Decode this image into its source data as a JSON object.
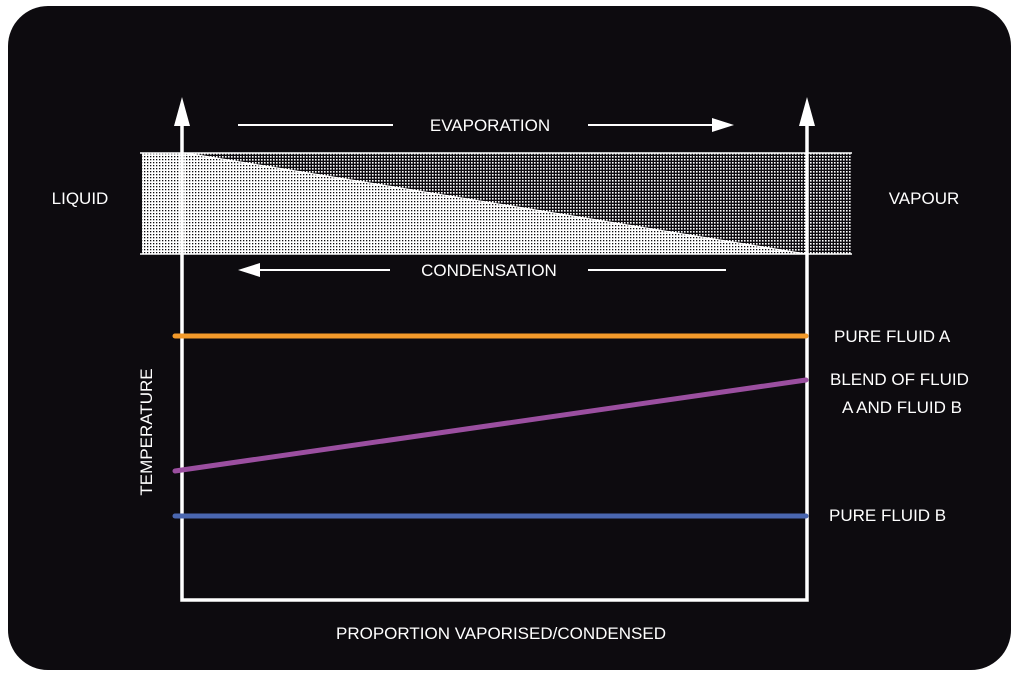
{
  "labels": {
    "evaporation": "EVAPORATION",
    "condensation": "CONDENSATION",
    "liquid": "LIQUID",
    "vapour": "VAPOUR",
    "temperature": "TEMPERATURE",
    "x_axis": "PROPORTION VAPORISED/CONDENSED"
  },
  "lines": {
    "fluid_a": {
      "label": "PURE FLUID A",
      "color": "#f39a2a"
    },
    "blend": {
      "label_line1": "BLEND OF FLUID",
      "label_line2": "A AND FLUID B",
      "color": "#9b4fa0"
    },
    "fluid_b": {
      "label": "PURE FLUID B",
      "color": "#4a67b0"
    }
  },
  "colors": {
    "background": "#0d0b0f",
    "foreground": "#ffffff"
  }
}
